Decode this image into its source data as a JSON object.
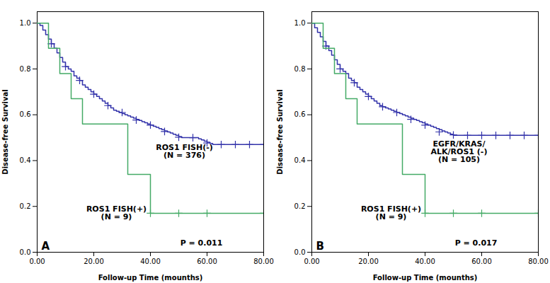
{
  "chart_data": [
    {
      "type": "line",
      "xlabel": "Follow-up Time (mounths)",
      "ylabel": "Disease-free Survival",
      "xlim": [
        0,
        80
      ],
      "ylim": [
        0,
        1.05
      ],
      "xticks": [
        {
          "value": 0,
          "label": "0.00"
        },
        {
          "value": 20,
          "label": "20.00"
        },
        {
          "value": 40,
          "label": "40.00"
        },
        {
          "value": 60,
          "label": "60.00"
        },
        {
          "value": 80,
          "label": "80.00"
        }
      ],
      "yticks": [
        {
          "value": 0.0,
          "label": "0.0"
        },
        0.2,
        0.4,
        0.6,
        0.8,
        {
          "value": 1.0,
          "label": "1.0"
        }
      ],
      "annotations": [
        {
          "text": "A"
        },
        {
          "text": "P = 0.011",
          "x": 58,
          "y": 0.03
        },
        {
          "text": "ROS1 FISH(-)\n(N = 376)",
          "x": 52,
          "y": 0.44
        },
        {
          "text": "ROS1 FISH(+)\n(N = 9)",
          "x": 28,
          "y": 0.17
        }
      ],
      "series": [
        {
          "color": "#3333aa",
          "line_style": "step",
          "marker": "plus",
          "x": [
            0,
            1,
            2,
            3,
            4,
            5,
            6,
            7,
            8,
            9,
            10,
            11,
            12,
            13,
            14,
            15,
            16,
            17,
            18,
            19,
            20,
            21,
            22,
            23,
            24,
            25,
            26,
            27,
            28,
            29,
            30,
            31,
            32,
            33,
            34,
            35,
            36,
            37,
            38,
            39,
            40,
            41,
            42,
            43,
            44,
            45,
            46,
            47,
            48,
            49,
            50,
            51,
            52,
            53,
            54,
            55,
            56,
            57,
            58,
            59,
            60,
            61,
            62,
            63,
            64,
            65,
            66,
            67,
            68,
            69,
            70,
            71,
            72,
            73,
            74,
            75,
            76,
            77,
            78,
            79,
            80
          ],
          "values": [
            1.0,
            0.99,
            0.97,
            0.95,
            0.93,
            0.91,
            0.89,
            0.87,
            0.85,
            0.83,
            0.81,
            0.8,
            0.79,
            0.77,
            0.76,
            0.75,
            0.73,
            0.72,
            0.71,
            0.7,
            0.69,
            0.68,
            0.67,
            0.66,
            0.65,
            0.64,
            0.63,
            0.62,
            0.615,
            0.61,
            0.605,
            0.6,
            0.595,
            0.59,
            0.585,
            0.58,
            0.575,
            0.57,
            0.565,
            0.56,
            0.555,
            0.55,
            0.545,
            0.54,
            0.535,
            0.53,
            0.525,
            0.52,
            0.515,
            0.51,
            0.505,
            0.5,
            0.5,
            0.5,
            0.5,
            0.5,
            0.5,
            0.495,
            0.49,
            0.485,
            0.48,
            0.475,
            0.47,
            0.47,
            0.47,
            0.47,
            0.47,
            0.47,
            0.47,
            0.47,
            0.47,
            0.47,
            0.47,
            0.47,
            0.47,
            0.47,
            0.47,
            0.47,
            0.47,
            0.47,
            0.47
          ],
          "censor_x": [
            5,
            10,
            15,
            20,
            25,
            30,
            35,
            40,
            45,
            50,
            55,
            60,
            65,
            70,
            75,
            80
          ],
          "censor_y": [
            0.91,
            0.81,
            0.75,
            0.69,
            0.64,
            0.61,
            0.577,
            0.555,
            0.527,
            0.502,
            0.5,
            0.477,
            0.47,
            0.47,
            0.47,
            0.47
          ]
        },
        {
          "color": "#44aa66",
          "line_style": "step",
          "marker": "plus",
          "x": [
            0,
            2,
            4,
            6,
            8,
            10,
            12,
            14,
            16,
            18,
            20,
            22,
            24,
            26,
            28,
            30,
            32,
            34,
            36,
            38,
            40,
            42,
            44,
            50,
            60,
            80
          ],
          "values": [
            1.0,
            1.0,
            0.89,
            0.89,
            0.78,
            0.78,
            0.67,
            0.67,
            0.56,
            0.56,
            0.56,
            0.56,
            0.56,
            0.56,
            0.56,
            0.56,
            0.34,
            0.34,
            0.34,
            0.34,
            0.17,
            0.17,
            0.17,
            0.17,
            0.17,
            0.17
          ],
          "censor_x": [
            40,
            50,
            60,
            80
          ],
          "censor_y": [
            0.17,
            0.17,
            0.17,
            0.17
          ]
        }
      ]
    },
    {
      "type": "line",
      "xlabel": "Follow-up Time (mounths)",
      "ylabel": "Disease-free Survival",
      "xlim": [
        0,
        80
      ],
      "ylim": [
        0,
        1.05
      ],
      "xticks": [
        {
          "value": 0,
          "label": "0.00"
        },
        {
          "value": 20,
          "label": "20.00"
        },
        {
          "value": 40,
          "label": "40.00"
        },
        {
          "value": 60,
          "label": "60.00"
        },
        {
          "value": 80,
          "label": "80.00"
        }
      ],
      "yticks": [
        {
          "value": 0.0,
          "label": "0.0"
        },
        0.2,
        0.4,
        0.6,
        0.8,
        {
          "value": 1.0,
          "label": "1.0"
        }
      ],
      "annotations": [
        {
          "text": "B"
        },
        {
          "text": "P = 0.017",
          "x": 58,
          "y": 0.03
        },
        {
          "text": "EGFR/KRAS/\nALK/ROS1 (-)\n(N = 105)",
          "x": 52,
          "y": 0.44
        },
        {
          "text": "ROS1 FISH(+)\n(N = 9)",
          "x": 28,
          "y": 0.17
        }
      ],
      "series": [
        {
          "color": "#3333aa",
          "line_style": "step",
          "marker": "plus",
          "x": [
            0,
            1,
            2,
            3,
            4,
            5,
            6,
            7,
            8,
            9,
            10,
            11,
            12,
            13,
            14,
            15,
            16,
            17,
            18,
            19,
            20,
            21,
            22,
            23,
            24,
            25,
            26,
            27,
            28,
            29,
            30,
            31,
            32,
            33,
            34,
            35,
            36,
            37,
            38,
            39,
            40,
            41,
            42,
            43,
            44,
            45,
            46,
            47,
            48,
            49,
            50,
            51,
            52,
            53,
            54,
            55,
            56,
            57,
            58,
            59,
            60,
            61,
            62,
            63,
            64,
            65,
            66,
            67,
            68,
            69,
            70,
            71,
            72,
            73,
            74,
            75,
            76,
            77,
            78,
            79,
            80
          ],
          "values": [
            1.0,
            0.98,
            0.96,
            0.94,
            0.92,
            0.9,
            0.88,
            0.86,
            0.84,
            0.82,
            0.8,
            0.79,
            0.78,
            0.76,
            0.75,
            0.74,
            0.72,
            0.71,
            0.7,
            0.69,
            0.68,
            0.67,
            0.66,
            0.65,
            0.64,
            0.635,
            0.63,
            0.625,
            0.62,
            0.615,
            0.61,
            0.605,
            0.6,
            0.595,
            0.59,
            0.585,
            0.58,
            0.575,
            0.57,
            0.565,
            0.56,
            0.555,
            0.55,
            0.545,
            0.54,
            0.535,
            0.53,
            0.525,
            0.52,
            0.515,
            0.51,
            0.51,
            0.51,
            0.51,
            0.51,
            0.51,
            0.51,
            0.51,
            0.51,
            0.51,
            0.51,
            0.51,
            0.51,
            0.51,
            0.51,
            0.51,
            0.51,
            0.51,
            0.51,
            0.51,
            0.51,
            0.51,
            0.51,
            0.51,
            0.51,
            0.51,
            0.51,
            0.51,
            0.51,
            0.51,
            0.51
          ],
          "censor_x": [
            5,
            10,
            15,
            20,
            25,
            30,
            35,
            40,
            45,
            50,
            55,
            60,
            65,
            70,
            75,
            80
          ],
          "censor_y": [
            0.9,
            0.8,
            0.74,
            0.68,
            0.635,
            0.61,
            0.58,
            0.555,
            0.525,
            0.512,
            0.51,
            0.51,
            0.51,
            0.51,
            0.51,
            0.51
          ]
        },
        {
          "color": "#44aa66",
          "line_style": "step",
          "marker": "plus",
          "x": [
            0,
            2,
            4,
            6,
            8,
            10,
            12,
            14,
            16,
            18,
            20,
            22,
            24,
            26,
            28,
            30,
            32,
            34,
            36,
            38,
            40,
            42,
            44,
            50,
            60,
            80
          ],
          "values": [
            1.0,
            1.0,
            0.89,
            0.89,
            0.78,
            0.78,
            0.67,
            0.67,
            0.56,
            0.56,
            0.56,
            0.56,
            0.56,
            0.56,
            0.56,
            0.56,
            0.34,
            0.34,
            0.34,
            0.34,
            0.17,
            0.17,
            0.17,
            0.17,
            0.17,
            0.17
          ],
          "censor_x": [
            40,
            50,
            60,
            80
          ],
          "censor_y": [
            0.17,
            0.17,
            0.17,
            0.17
          ]
        }
      ]
    }
  ]
}
